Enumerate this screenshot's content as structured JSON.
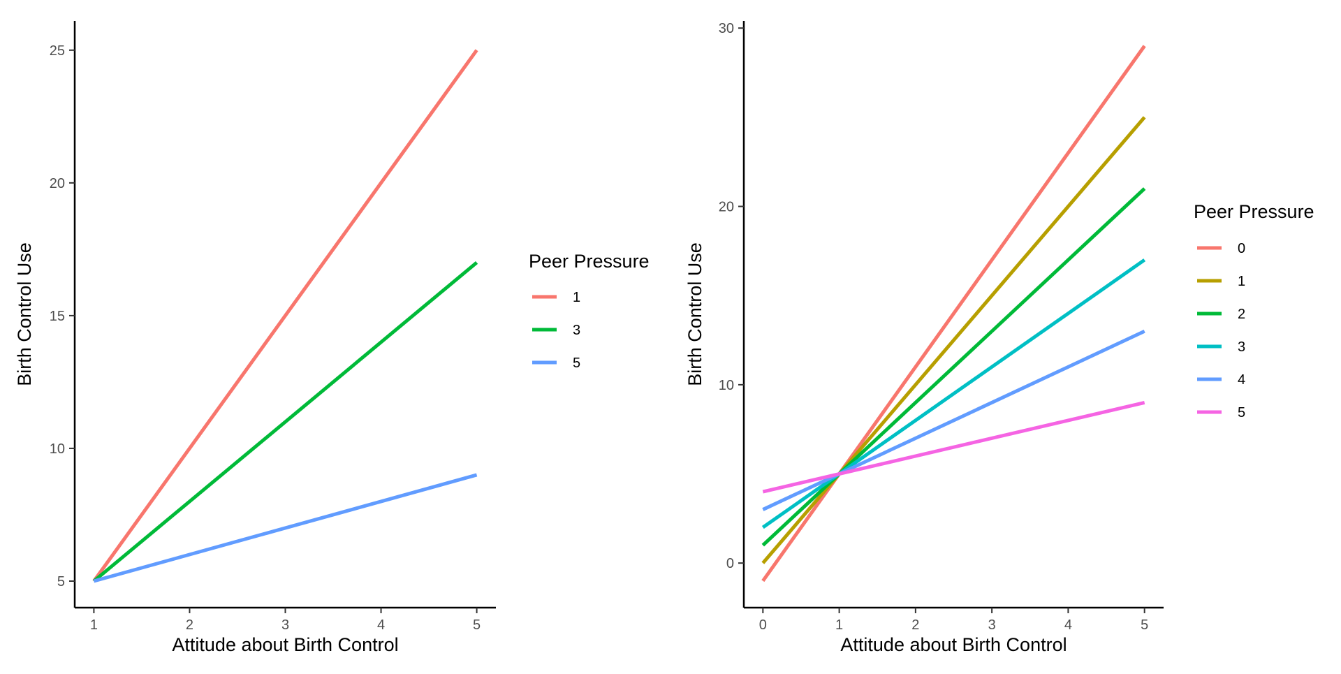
{
  "chart_data": [
    {
      "type": "line",
      "title": "",
      "xlabel": "Attitude about Birth Control",
      "ylabel": "Birth Control Use",
      "xlim": [
        0.8,
        5.2
      ],
      "ylim": [
        4,
        26.1
      ],
      "x_ticks": [
        1,
        2,
        3,
        4,
        5
      ],
      "y_ticks": [
        5,
        10,
        15,
        20,
        25
      ],
      "grid": false,
      "legend_title": "Peer Pressure",
      "legend_position": "right",
      "x": [
        1,
        5
      ],
      "series": [
        {
          "name": "1",
          "color": "#F8766D",
          "values": [
            5,
            25
          ]
        },
        {
          "name": "3",
          "color": "#00BA38",
          "values": [
            5,
            17
          ]
        },
        {
          "name": "5",
          "color": "#619CFF",
          "values": [
            5,
            9
          ]
        }
      ]
    },
    {
      "type": "line",
      "title": "",
      "xlabel": "Attitude about Birth Control",
      "ylabel": "Birth Control Use",
      "xlim": [
        -0.25,
        5.25
      ],
      "ylim": [
        -2.5,
        30.4
      ],
      "x_ticks": [
        0,
        1,
        2,
        3,
        4,
        5
      ],
      "y_ticks": [
        0,
        10,
        20,
        30
      ],
      "grid": false,
      "legend_title": "Peer Pressure",
      "legend_position": "right",
      "x": [
        0,
        5
      ],
      "series": [
        {
          "name": "0",
          "color": "#F8766D",
          "values": [
            -1,
            29
          ]
        },
        {
          "name": "1",
          "color": "#B79F00",
          "values": [
            0,
            25
          ]
        },
        {
          "name": "2",
          "color": "#00BA38",
          "values": [
            1,
            21
          ]
        },
        {
          "name": "3",
          "color": "#00BFC4",
          "values": [
            2,
            17
          ]
        },
        {
          "name": "4",
          "color": "#619CFF",
          "values": [
            3,
            13
          ]
        },
        {
          "name": "5",
          "color": "#F564E3",
          "values": [
            4,
            9
          ]
        }
      ]
    }
  ]
}
